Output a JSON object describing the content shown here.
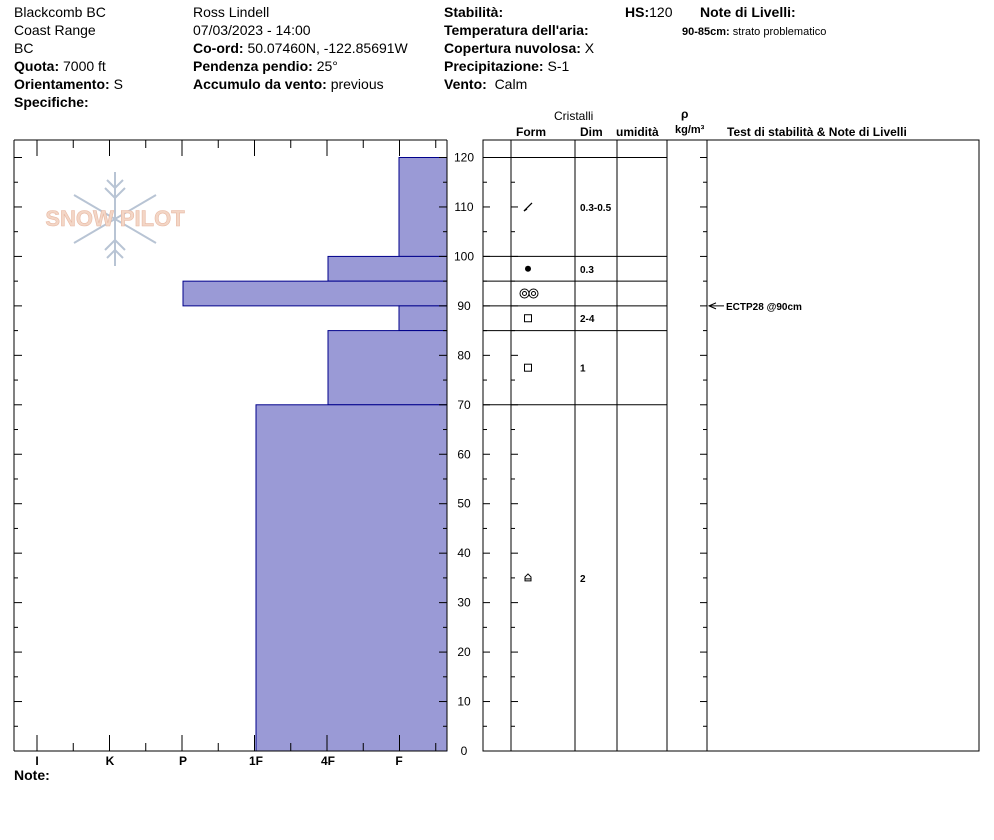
{
  "header": {
    "location": "Blackcomb BC",
    "range": "Coast Range",
    "region": "BC",
    "quota_label": "Quota:",
    "quota_value": "7000 ft",
    "aspect_label": "Orientamento:",
    "aspect_value": "S",
    "specifics_label": "Specifiche:",
    "observer": "Ross Lindell",
    "datetime": "07/03/2023 - 14:00",
    "coord_label": "Co-ord:",
    "coord_value": "50.07460N, -122.85691W",
    "slope_label": "Pendenza pendio:",
    "slope_value": "25°",
    "wind_load_label": "Accumulo da vento:",
    "wind_load_value": "previous",
    "stability_label": "Stabilità:",
    "air_temp_label": "Temperatura dell'aria:",
    "cloud_label": "Copertura nuvolosa:",
    "cloud_value": "X",
    "precip_label": "Precipitazione:",
    "precip_value": "S-1",
    "wind_label": "Vento:",
    "wind_value": "Calm",
    "hs_label": "HS:",
    "hs_value": "120",
    "layer_notes_label": "Note di Livelli:",
    "layer_note_range": "90-85cm:",
    "layer_note_text": "strato problematico"
  },
  "logo_text": "SNOW PILOT",
  "notes_label": "Note:",
  "columns": {
    "crystals": "Cristalli",
    "form": "Form",
    "size": "Dim",
    "moisture": "umidità",
    "rho": "ρ",
    "density_unit": "kg/m³",
    "tests_notes": "Test di stabilità & Note di Livelli"
  },
  "colors": {
    "hardness_fill": "#9a9ad6",
    "hardness_stroke": "#00008b"
  },
  "chart_data": {
    "type": "bar",
    "orientation": "horizontal",
    "y_axis": {
      "label": "",
      "unit": "cm",
      "range": [
        0,
        120
      ],
      "ticks": [
        0,
        10,
        20,
        30,
        40,
        50,
        60,
        70,
        80,
        90,
        100,
        110,
        120
      ]
    },
    "x_axis": {
      "categories": [
        "I",
        "K",
        "P",
        "1F",
        "4F",
        "F"
      ],
      "reversed": true
    },
    "hardness_layers": [
      {
        "top": 120,
        "bottom": 100,
        "hardness": "F"
      },
      {
        "top": 100,
        "bottom": 95,
        "hardness": "4F"
      },
      {
        "top": 95,
        "bottom": 90,
        "hardness": "P"
      },
      {
        "top": 90,
        "bottom": 85,
        "hardness": "F"
      },
      {
        "top": 85,
        "bottom": 70,
        "hardness": "4F"
      },
      {
        "top": 70,
        "bottom": 0,
        "hardness": "1F"
      }
    ],
    "layer_boundaries": [
      120,
      100,
      95,
      90,
      85,
      70
    ],
    "crystals": [
      {
        "top": 120,
        "bottom": 100,
        "form": "decomposing",
        "size": "0.3-0.5"
      },
      {
        "top": 100,
        "bottom": 95,
        "form": "graupel",
        "size": "0.3"
      },
      {
        "top": 95,
        "bottom": 90,
        "form": "rime",
        "size": ""
      },
      {
        "top": 90,
        "bottom": 85,
        "form": "faceted",
        "size": "2-4"
      },
      {
        "top": 85,
        "bottom": 70,
        "form": "faceted",
        "size": "1"
      },
      {
        "top": 70,
        "bottom": 0,
        "form": "depth-hoar",
        "size": "2"
      }
    ],
    "tests": [
      {
        "depth": 90,
        "label": "ECTP28 @90cm"
      }
    ]
  }
}
